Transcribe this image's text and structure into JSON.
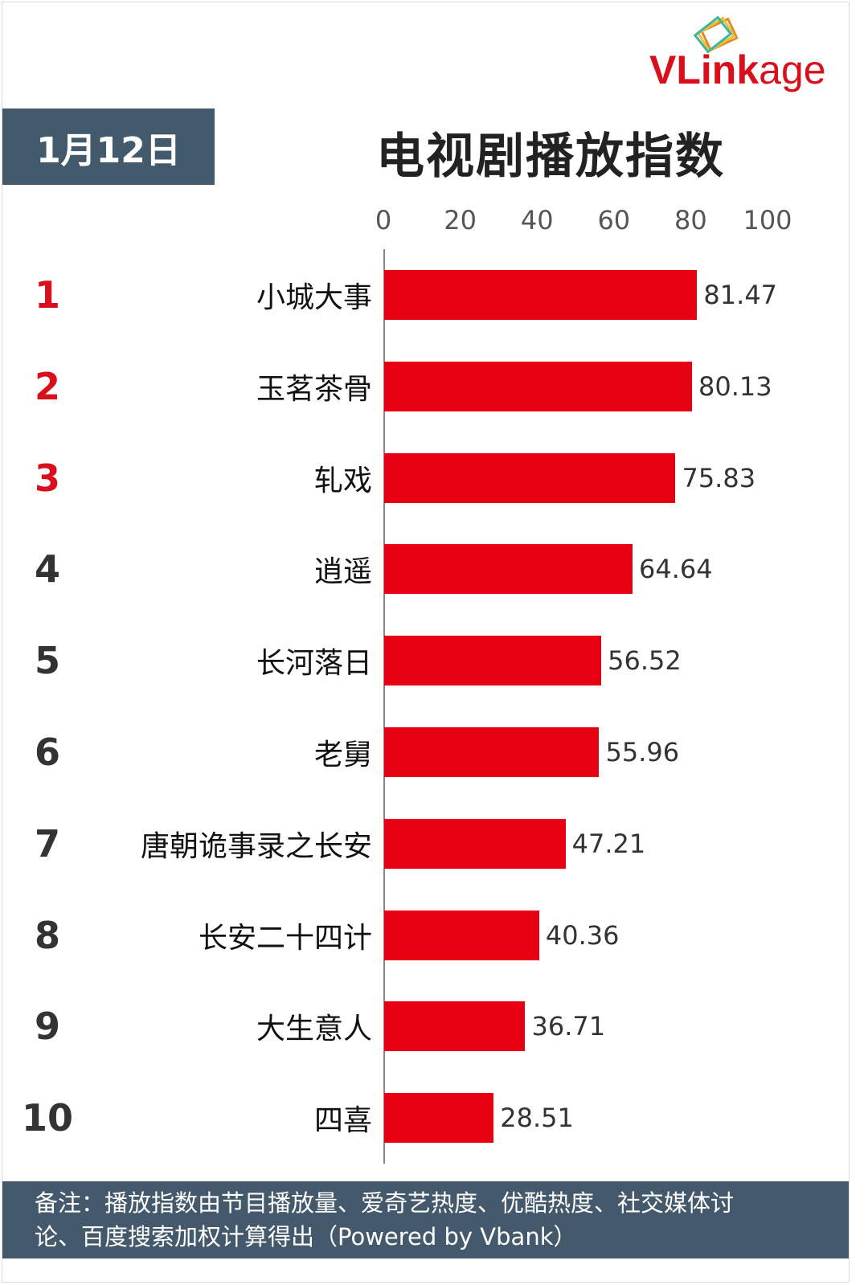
{
  "date": "1月12日",
  "logo": {
    "text_bold": "VLink",
    "text_light": "age"
  },
  "chart_data": {
    "type": "bar",
    "orientation": "horizontal",
    "title": "电视剧播放指数",
    "xlim": [
      0,
      100
    ],
    "ticks": [
      "0",
      "20",
      "40",
      "60",
      "80",
      "100"
    ],
    "ranks": [
      "1",
      "2",
      "3",
      "4",
      "5",
      "6",
      "7",
      "8",
      "9",
      "10"
    ],
    "categories": [
      "小城大事",
      "玉茗茶骨",
      "轧戏",
      "逍遥",
      "长河落日",
      "老舅",
      "唐朝诡事录之长安",
      "长安二十四计",
      "大生意人",
      "四喜"
    ],
    "values": [
      81.47,
      80.13,
      75.83,
      64.64,
      56.52,
      55.96,
      47.21,
      40.36,
      36.71,
      28.51
    ],
    "value_labels": [
      "81.47",
      "80.13",
      "75.83",
      "64.64",
      "56.52",
      "55.96",
      "47.21",
      "40.36",
      "36.71",
      "28.51"
    ],
    "grid": false,
    "bar_color": "#e60012",
    "top_rank_color": "#d9101b"
  },
  "footer": {
    "line1": "备注：播放指数由节目播放量、爱奇艺热度、优酷热度、社交媒体讨",
    "line2": "论、百度搜索加权计算得出（Powered by Vbank）"
  }
}
